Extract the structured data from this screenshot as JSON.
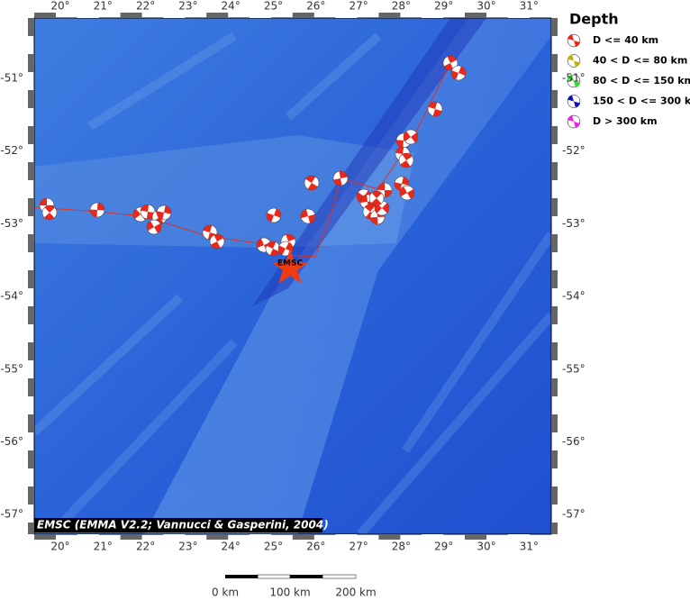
{
  "map": {
    "lon_labels": [
      "20°",
      "21°",
      "22°",
      "23°",
      "24°",
      "25°",
      "26°",
      "27°",
      "28°",
      "29°",
      "30°",
      "31°"
    ],
    "lat_labels": [
      "-51°",
      "-52°",
      "-53°",
      "-54°",
      "-55°",
      "-56°",
      "-57°"
    ],
    "epicenter_label": "EMSC",
    "attribution": "EMSC (EMMA V2.2; Vannucci & Gasperini, 2004)",
    "legend": {
      "title": "Depth",
      "items": [
        "D <= 40 km",
        "40 < D <= 80 km",
        "80 < D <= 150 km",
        "150 < D <= 300 km",
        "D > 300 km"
      ]
    },
    "scale_bar": [
      "0 km",
      "100 km",
      "200 km"
    ]
  }
}
